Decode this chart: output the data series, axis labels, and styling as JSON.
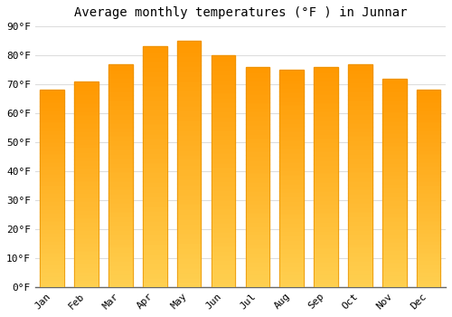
{
  "title": "Average monthly temperatures (°F ) in Junnar",
  "months": [
    "Jan",
    "Feb",
    "Mar",
    "Apr",
    "May",
    "Jun",
    "Jul",
    "Aug",
    "Sep",
    "Oct",
    "Nov",
    "Dec"
  ],
  "values": [
    68,
    71,
    77,
    83,
    85,
    80,
    76,
    75,
    76,
    77,
    72,
    68
  ],
  "bar_color_top": "#FFA020",
  "bar_color_bottom": "#FFD070",
  "bar_edge_color": "#E89000",
  "background_color": "#FFFFFF",
  "plot_bg_color": "#FFFFFF",
  "grid_color": "#DDDDDD",
  "ylim": [
    0,
    90
  ],
  "yticks": [
    0,
    10,
    20,
    30,
    40,
    50,
    60,
    70,
    80,
    90
  ],
  "title_fontsize": 10,
  "tick_fontsize": 8,
  "font_family": "monospace",
  "bar_width": 0.7
}
